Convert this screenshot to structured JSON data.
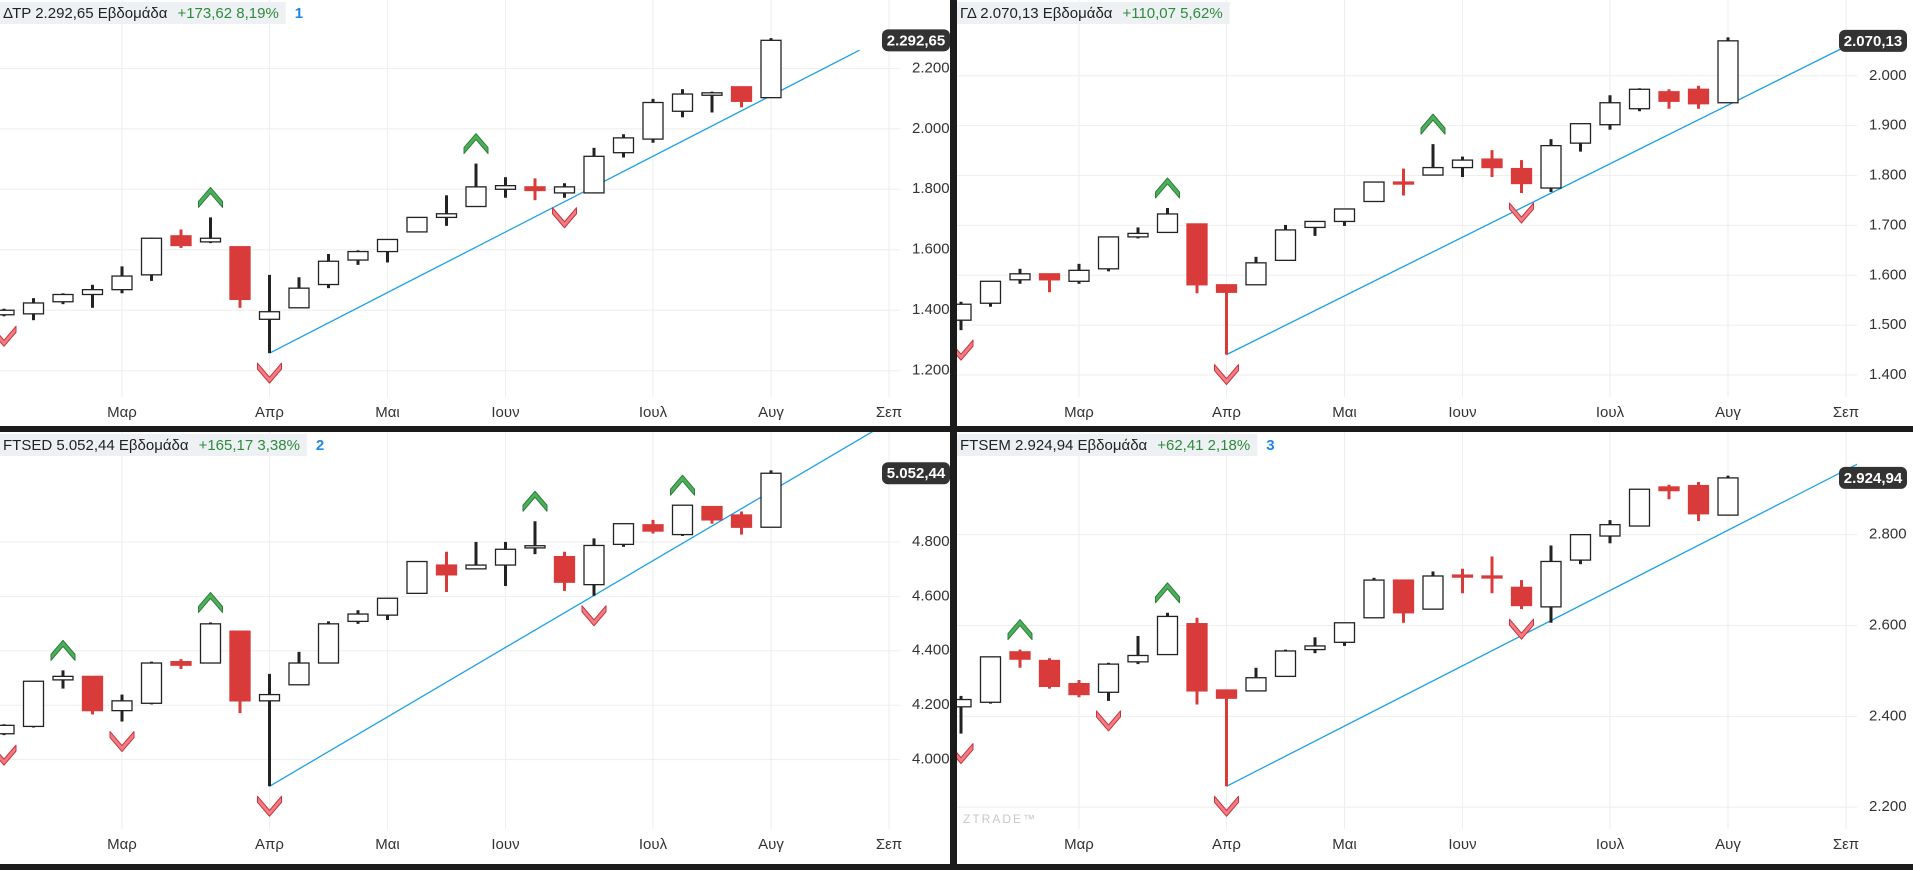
{
  "chart_data": [
    {
      "type": "candlestick",
      "title": "ΔΤΡ 2.292,65 Εβδομάδα",
      "change": "+173,62 8,19%",
      "tag": "1",
      "last_label": "2.292,65",
      "categories": [
        null,
        null,
        null,
        null,
        "Μαρ",
        null,
        null,
        null,
        null,
        "Απρ",
        null,
        null,
        null,
        "Μαι",
        null,
        null,
        null,
        "Ιουν",
        null,
        null,
        null,
        null,
        "Ιουλ",
        null,
        null,
        null,
        "Αυγ",
        null,
        null,
        null,
        "Σεπ"
      ],
      "open": [
        1385,
        1388,
        1428,
        1452,
        1468,
        1517,
        1646,
        1626,
        1610,
        1370,
        1408,
        1485,
        1566,
        1594,
        1659,
        1707,
        1743,
        1800,
        1808,
        1788,
        1788,
        1921,
        1966,
        2058,
        2111,
        2139,
        2103,
        null,
        null,
        null,
        null
      ],
      "high": [
        1405,
        1440,
        1456,
        1484,
        1545,
        1640,
        1667,
        1707,
        1610,
        1517,
        1509,
        1586,
        1598,
        1634,
        1707,
        1780,
        1885,
        1840,
        1836,
        1820,
        1937,
        1982,
        2099,
        2131,
        2123,
        2139,
        2300,
        null,
        null,
        null,
        null
      ],
      "low": [
        1380,
        1367,
        1420,
        1408,
        1456,
        1497,
        1606,
        1622,
        1408,
        1258,
        1408,
        1473,
        1550,
        1558,
        1659,
        1679,
        1743,
        1772,
        1764,
        1772,
        1788,
        1905,
        1954,
        2038,
        2054,
        2071,
        2103,
        null,
        null,
        null,
        null
      ],
      "close": [
        1400,
        1424,
        1452,
        1468,
        1513,
        1638,
        1614,
        1638,
        1436,
        1395,
        1473,
        1562,
        1594,
        1634,
        1707,
        1719,
        1808,
        1812,
        1796,
        1808,
        1909,
        1970,
        2087,
        2115,
        2119,
        2091,
        2292.65,
        null,
        null,
        null,
        null
      ],
      "ylim": [
        1113,
        2426
      ],
      "yticks": [
        {
          "value": 1200,
          "label": "1.200"
        },
        {
          "value": 1400,
          "label": "1.400"
        },
        {
          "value": 1600,
          "label": "1.600"
        },
        {
          "value": 1800,
          "label": "1.800"
        },
        {
          "value": 2000,
          "label": "2.000"
        },
        {
          "value": 2200,
          "label": "2.200"
        }
      ],
      "buy_signals": [
        7,
        16
      ],
      "sell_signals": [
        0,
        9,
        19
      ],
      "trendline": {
        "x": [
          9,
          29
        ],
        "y": [
          1258,
          2260
        ]
      },
      "up_color": "#ffffff",
      "down_color": "#d93b3b",
      "grid": true
    },
    {
      "type": "candlestick",
      "title": "ΓΔ 2.070,13 Εβδομάδα",
      "change": "+110,07 5,62%",
      "last_label": "2.070,13",
      "categories": [
        null,
        null,
        null,
        null,
        "Μαρ",
        null,
        null,
        null,
        null,
        "Απρ",
        null,
        null,
        null,
        "Μαι",
        null,
        null,
        null,
        "Ιουν",
        null,
        null,
        null,
        null,
        "Ιουλ",
        null,
        null,
        null,
        "Αυγ",
        null,
        null,
        null,
        "Σεπ"
      ],
      "open": [
        1510,
        1544,
        1591,
        1603,
        1588,
        1613,
        1677,
        1686,
        1703,
        1581,
        1581,
        1630,
        1696,
        1708,
        1748,
        1787,
        1801,
        1816,
        1833,
        1814,
        1775,
        1865,
        1902,
        1934,
        1968,
        1973,
        1946,
        null,
        null,
        null,
        null
      ],
      "high": [
        1547,
        1588,
        1613,
        1603,
        1623,
        1677,
        1696,
        1735,
        1703,
        1581,
        1637,
        1701,
        1708,
        1733,
        1787,
        1814,
        1863,
        1838,
        1851,
        1831,
        1873,
        1904,
        1961,
        1975,
        1973,
        1980,
        2077,
        null,
        null,
        null,
        null
      ],
      "low": [
        1490,
        1537,
        1583,
        1566,
        1583,
        1608,
        1674,
        1686,
        1564,
        1441,
        1581,
        1630,
        1679,
        1699,
        1748,
        1760,
        1801,
        1797,
        1797,
        1765,
        1767,
        1848,
        1892,
        1929,
        1934,
        1934,
        1946,
        null,
        null,
        null,
        null
      ],
      "close": [
        1542,
        1588,
        1603,
        1591,
        1610,
        1677,
        1684,
        1723,
        1581,
        1566,
        1625,
        1691,
        1708,
        1733,
        1787,
        1784,
        1816,
        1831,
        1816,
        1784,
        1860,
        1904,
        1946,
        1973,
        1949,
        1944,
        2070.13,
        null,
        null,
        null,
        null
      ],
      "ylim": [
        1356,
        2152
      ],
      "yticks": [
        {
          "value": 1400,
          "label": "1.400"
        },
        {
          "value": 1500,
          "label": "1.500"
        },
        {
          "value": 1600,
          "label": "1.600"
        },
        {
          "value": 1700,
          "label": "1.700"
        },
        {
          "value": 1800,
          "label": "1.800"
        },
        {
          "value": 1900,
          "label": "1.900"
        },
        {
          "value": 2000,
          "label": "2.000"
        }
      ],
      "buy_signals": [
        7,
        16
      ],
      "sell_signals": [
        0,
        9,
        19
      ],
      "trendline": {
        "x": [
          9,
          30
        ],
        "y": [
          1441,
          2059
        ]
      },
      "up_color": "#ffffff",
      "down_color": "#d93b3b",
      "grid": true
    },
    {
      "type": "candlestick",
      "title": "FTSED 5.052,44 Εβδομάδα",
      "change": "+165,17 3,38%",
      "tag": "2",
      "last_label": "5.052,44",
      "categories": [
        null,
        null,
        null,
        null,
        "Μαρ",
        null,
        null,
        null,
        null,
        "Απρ",
        null,
        null,
        null,
        "Μαι",
        null,
        null,
        null,
        "Ιουν",
        null,
        null,
        null,
        null,
        "Ιουλ",
        null,
        null,
        null,
        "Αυγ",
        null,
        null,
        null,
        "Σεπ"
      ],
      "open": [
        4095,
        4122,
        4293,
        4306,
        4180,
        4207,
        4360,
        4355,
        4472,
        4216,
        4275,
        4355,
        4508,
        4531,
        4611,
        4715,
        4701,
        4715,
        4778,
        4746,
        4643,
        4791,
        4863,
        4827,
        4930,
        4899,
        4854,
        null,
        null,
        null,
        null
      ],
      "high": [
        4130,
        4288,
        4328,
        4306,
        4239,
        4360,
        4369,
        4504,
        4472,
        4315,
        4396,
        4508,
        4549,
        4593,
        4728,
        4764,
        4800,
        4800,
        4876,
        4764,
        4813,
        4867,
        4881,
        4935,
        4930,
        4912,
        5063,
        null,
        null,
        null,
        null
      ],
      "low": [
        4090,
        4118,
        4261,
        4166,
        4140,
        4203,
        4333,
        4355,
        4171,
        3902,
        4275,
        4355,
        4499,
        4513,
        4611,
        4616,
        4701,
        4638,
        4755,
        4620,
        4602,
        4782,
        4831,
        4822,
        4867,
        4827,
        4854,
        null,
        null,
        null,
        null
      ],
      "close": [
        4126,
        4288,
        4306,
        4180,
        4216,
        4355,
        4347,
        4499,
        4216,
        4239,
        4355,
        4499,
        4535,
        4593,
        4728,
        4679,
        4715,
        4773,
        4786,
        4652,
        4787,
        4867,
        4840,
        4935,
        4881,
        4854,
        5052.44,
        null,
        null,
        null,
        null
      ],
      "ylim": [
        3745,
        5204
      ],
      "yticks": [
        {
          "value": 4000,
          "label": "4.000"
        },
        {
          "value": 4200,
          "label": "4.200"
        },
        {
          "value": 4400,
          "label": "4.400"
        },
        {
          "value": 4600,
          "label": "4.600"
        },
        {
          "value": 4800,
          "label": "4.800"
        }
      ],
      "buy_signals": [
        2,
        7,
        18,
        23
      ],
      "sell_signals": [
        0,
        4,
        9,
        20
      ],
      "trendline": {
        "x": [
          9,
          30.5
        ],
        "y": [
          3902,
          5273
        ]
      },
      "up_color": "#ffffff",
      "down_color": "#d93b3b",
      "grid": true
    },
    {
      "type": "candlestick",
      "title": "FTSEM 2.924,94 Εβδομάδα",
      "change": "+62,41 2,18%",
      "tag": "3",
      "last_label": "2.924,94",
      "watermark": "ZTRADE™",
      "categories": [
        null,
        null,
        null,
        null,
        "Μαρ",
        null,
        null,
        null,
        null,
        "Απρ",
        null,
        null,
        null,
        "Μαι",
        null,
        null,
        null,
        "Ιουν",
        null,
        null,
        null,
        null,
        "Ιουλ",
        null,
        null,
        null,
        "Αυγ",
        null,
        null,
        null,
        "Σεπ"
      ],
      "open": [
        2421,
        2431,
        2542,
        2523,
        2472,
        2453,
        2520,
        2536,
        2604,
        2458,
        2456,
        2488,
        2547,
        2563,
        2617,
        2700,
        2636,
        2711,
        2709,
        2684,
        2641,
        2744,
        2797,
        2819,
        2905,
        2908,
        2843,
        null,
        null,
        null,
        null
      ],
      "high": [
        2445,
        2531,
        2547,
        2528,
        2480,
        2518,
        2577,
        2628,
        2617,
        2458,
        2507,
        2547,
        2574,
        2606,
        2705,
        2700,
        2719,
        2725,
        2752,
        2700,
        2776,
        2800,
        2832,
        2900,
        2910,
        2916,
        2930,
        null,
        null,
        null,
        null
      ],
      "low": [
        2362,
        2428,
        2507,
        2461,
        2442,
        2434,
        2515,
        2536,
        2426,
        2246,
        2456,
        2488,
        2539,
        2555,
        2617,
        2606,
        2636,
        2671,
        2671,
        2636,
        2606,
        2735,
        2781,
        2819,
        2878,
        2830,
        2843,
        null,
        null,
        null,
        null
      ],
      "close": [
        2437,
        2531,
        2526,
        2466,
        2448,
        2515,
        2534,
        2620,
        2456,
        2440,
        2485,
        2544,
        2555,
        2606,
        2700,
        2628,
        2709,
        2708,
        2706,
        2644,
        2741,
        2800,
        2822,
        2900,
        2897,
        2846,
        2924.94,
        null,
        null,
        null,
        null
      ],
      "ylim": [
        2152,
        3026
      ],
      "yticks": [
        {
          "value": 2200,
          "label": "2.200"
        },
        {
          "value": 2400,
          "label": "2.400"
        },
        {
          "value": 2600,
          "label": "2.600"
        },
        {
          "value": 2800,
          "label": "2.800"
        }
      ],
      "buy_signals": [
        2,
        7
      ],
      "sell_signals": [
        0,
        5,
        9,
        19
      ],
      "trendline": {
        "x": [
          9,
          30.8
        ],
        "y": [
          2246,
          2969
        ]
      },
      "up_color": "#ffffff",
      "down_color": "#d93b3b",
      "grid": true
    }
  ]
}
